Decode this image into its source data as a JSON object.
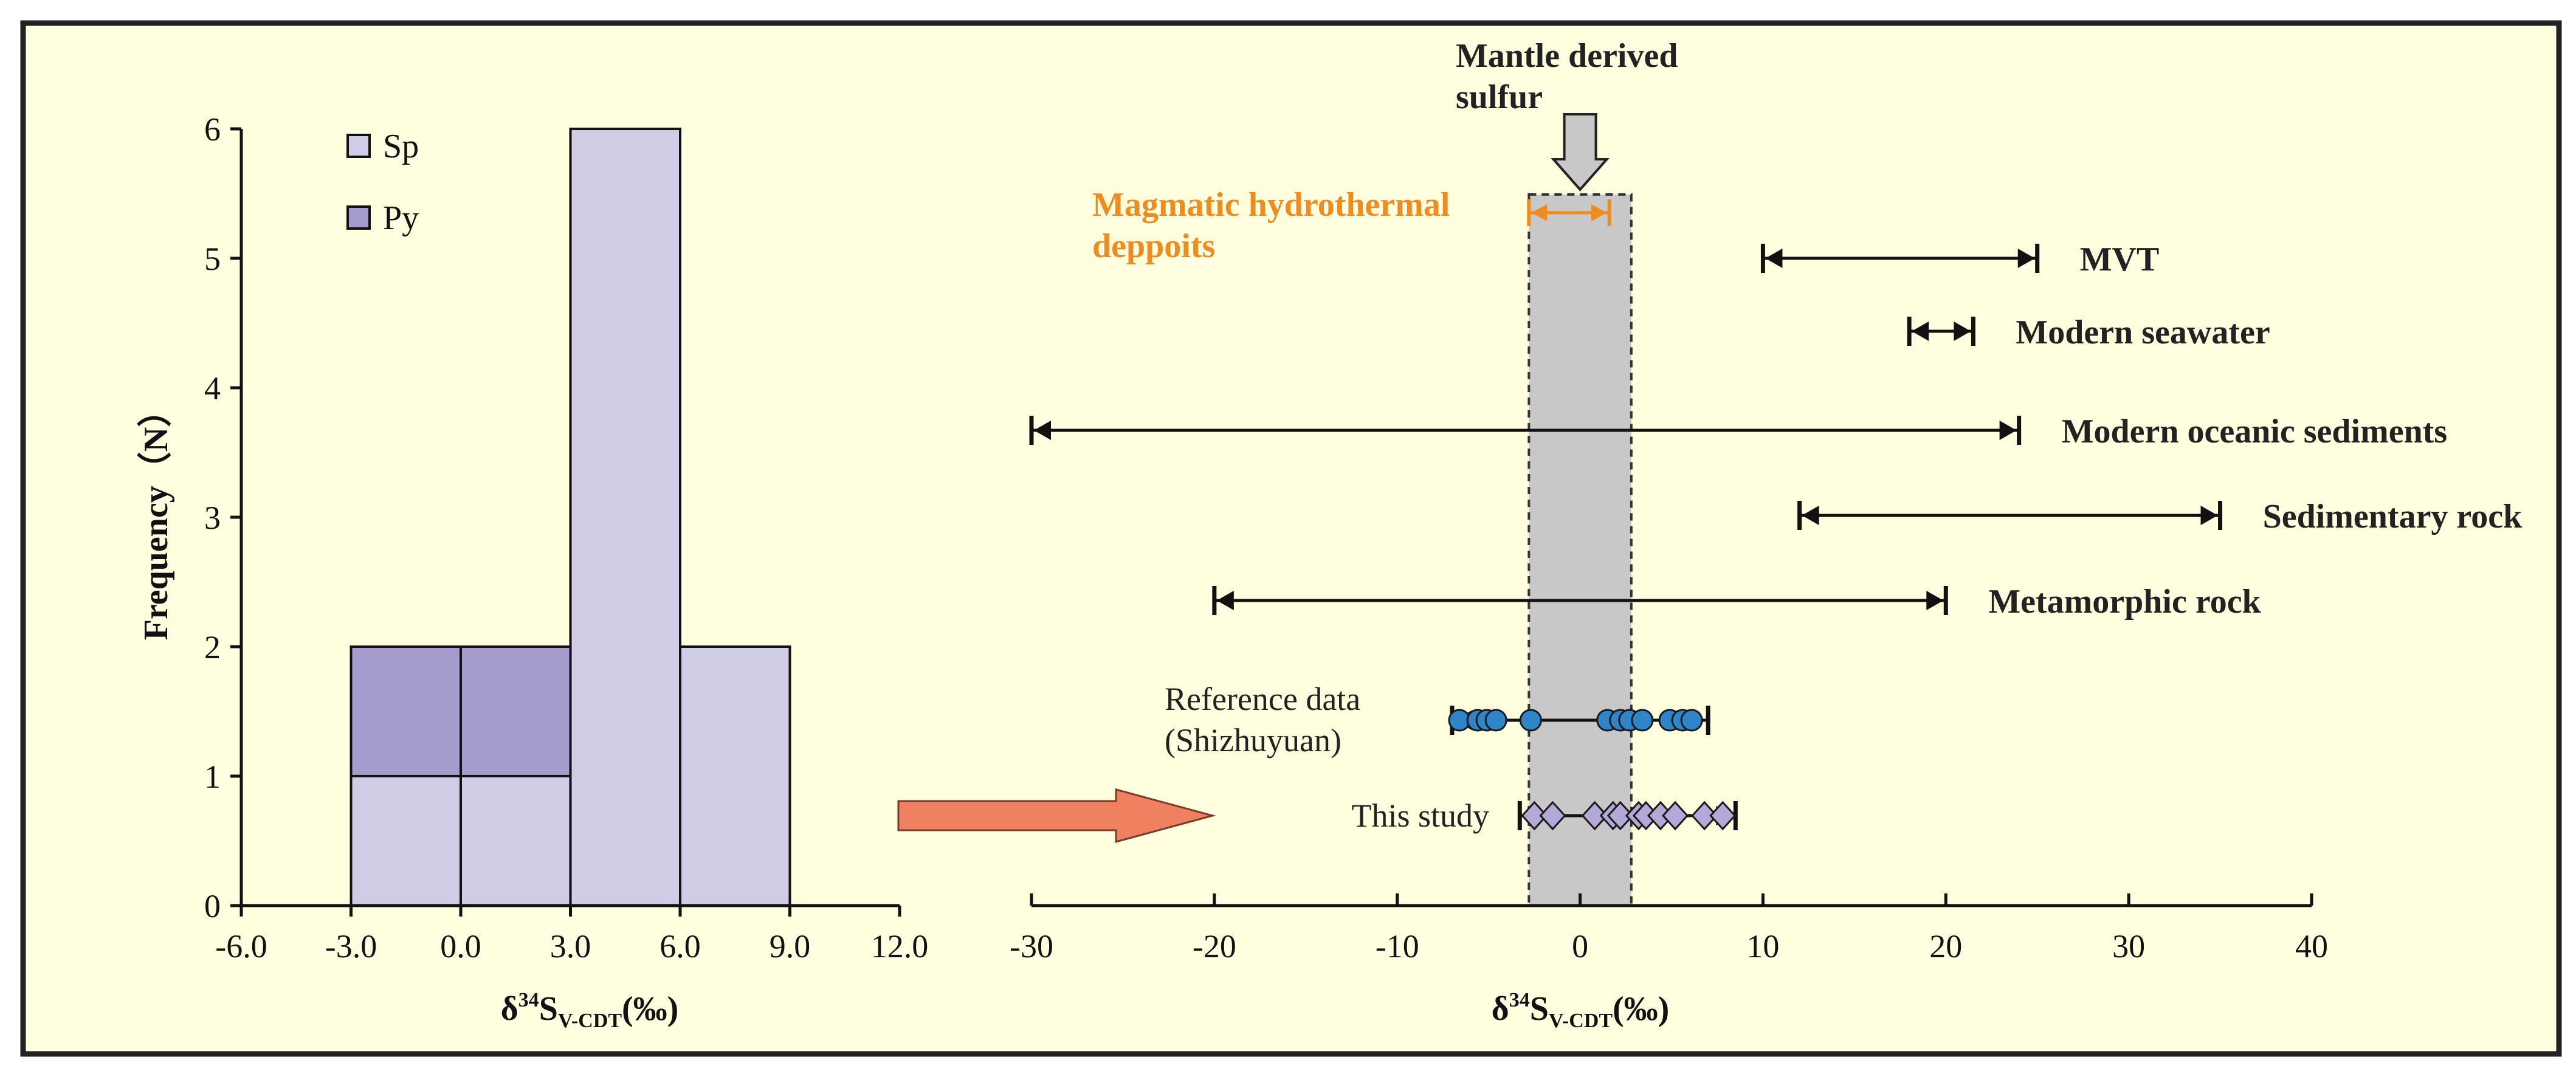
{
  "colors": {
    "background": "#ffffe0",
    "frame": "#222222",
    "sp_fill": "#d0cce6",
    "py_fill": "#a59bcd",
    "mantle_band": "#c8c8c8",
    "magmatic": "#f08c1e",
    "reference_points": "#2e86c8",
    "study_points": "#b4a8d8",
    "arrow": "#ef8160",
    "mantle_arrow": "#c8c8c8"
  },
  "chart_data": [
    {
      "type": "bar",
      "subtype": "stacked histogram",
      "title": "",
      "xlabel": "δ34SV-CDT(‰)",
      "xlabel_parts": [
        "δ",
        "34",
        "S",
        "V-CDT",
        "(‰)"
      ],
      "ylabel": "Frequency（N）",
      "xlim": [
        -6.0,
        12.0
      ],
      "ylim": [
        0,
        6
      ],
      "x_ticks": [
        "-6.0",
        "-3.0",
        "0.0",
        "3.0",
        "6.0",
        "9.0",
        "12.0"
      ],
      "y_ticks": [
        "0",
        "1",
        "2",
        "3",
        "4",
        "5",
        "6"
      ],
      "bins": [
        [
          -3.0,
          0.0
        ],
        [
          0.0,
          3.0
        ],
        [
          3.0,
          6.0
        ],
        [
          6.0,
          9.0
        ]
      ],
      "series": [
        {
          "name": "Sp",
          "values": [
            1,
            1,
            6,
            2
          ]
        },
        {
          "name": "Py",
          "values": [
            1,
            1,
            0,
            0
          ]
        }
      ],
      "legend": [
        "Sp",
        "Py"
      ],
      "legend_position": "top-left"
    },
    {
      "type": "range",
      "xlabel": "δ34SV-CDT(‰)",
      "xlabel_parts": [
        "δ",
        "34",
        "S",
        "V-CDT",
        "(‰)"
      ],
      "xlim": [
        -30,
        40
      ],
      "x_ticks": [
        "-30",
        "-20",
        "-10",
        "0",
        "10",
        "20",
        "30",
        "40"
      ],
      "mantle_band": {
        "label": "Mantle derived sulfur",
        "label_lines": [
          "Mantle derived",
          "sulfur"
        ],
        "range": [
          -2.8,
          2.8
        ]
      },
      "magmatic": {
        "label": "Magmatic hydrothermal deppoits",
        "label_lines": [
          "Magmatic hydrothermal",
          "deppoits"
        ],
        "range": [
          -2.8,
          1.6
        ]
      },
      "ranges": [
        {
          "label": "MVT",
          "min": 10,
          "max": 25
        },
        {
          "label": "Modern seawater",
          "min": 18,
          "max": 21.5
        },
        {
          "label": "Modern oceanic sediments",
          "min": -30,
          "max": 24
        },
        {
          "label": "Sedimentary  rock",
          "min": 12,
          "max": 35
        },
        {
          "label": "Metamorphic  rock",
          "min": -20,
          "max": 20
        }
      ],
      "reference": {
        "label": "Reference data (Shizhuyuan)",
        "label_lines": [
          "Reference data",
          "(Shizhuyuan)"
        ],
        "min": -7,
        "max": 7,
        "values": [
          -6.6,
          -5.6,
          -5.1,
          -4.6,
          -2.7,
          1.5,
          2.2,
          2.7,
          3.4,
          4.9,
          5.6,
          6.1
        ]
      },
      "study": {
        "label": "This study",
        "min": -3.3,
        "max": 8.5,
        "values": [
          -2.5,
          -1.5,
          0.8,
          1.8,
          2.2,
          3.2,
          3.6,
          4.4,
          5.2,
          6.8,
          7.8
        ]
      }
    }
  ]
}
